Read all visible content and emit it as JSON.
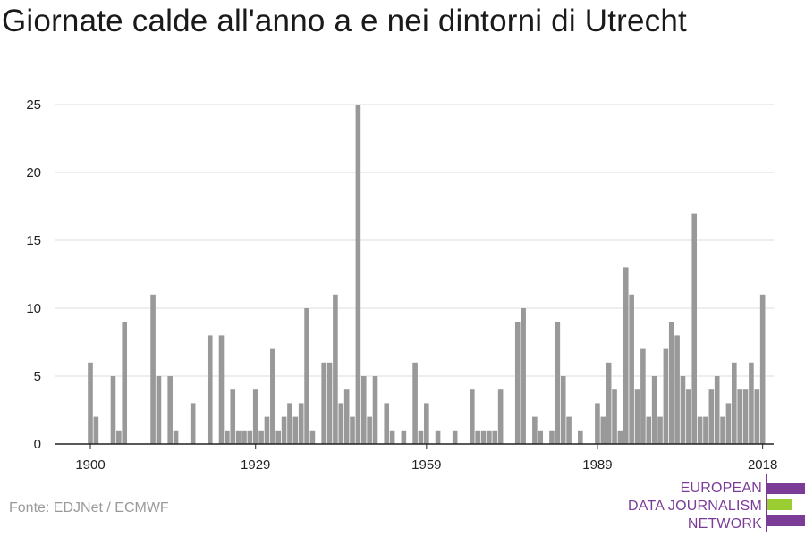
{
  "title": "Giornate calde all'anno a e nei dintorni di Utrecht",
  "source": "Fonte: EDJNet / ECMWF",
  "logo": {
    "lines": [
      "EUROPEAN",
      "DATA JOURNALISM",
      "NETWORK"
    ],
    "colors": {
      "text": "#7b3c98",
      "purple": "#7b3c98",
      "green": "#9acd32"
    }
  },
  "colors": {
    "bar": "#999999",
    "grid": "#dddddd",
    "axis": "#222222"
  },
  "chart_data": {
    "type": "bar",
    "title": "Giornate calde all'anno a e nei dintorni di Utrecht",
    "xlabel": "",
    "ylabel": "",
    "ylim": [
      0,
      25
    ],
    "yticks": [
      0,
      5,
      10,
      15,
      20,
      25
    ],
    "xticks": [
      1900,
      1929,
      1959,
      1989,
      2018
    ],
    "grid": true,
    "x": [
      1900,
      1901,
      1902,
      1903,
      1904,
      1905,
      1906,
      1907,
      1908,
      1909,
      1910,
      1911,
      1912,
      1913,
      1914,
      1915,
      1916,
      1917,
      1918,
      1919,
      1920,
      1921,
      1922,
      1923,
      1924,
      1925,
      1926,
      1927,
      1928,
      1929,
      1930,
      1931,
      1932,
      1933,
      1934,
      1935,
      1936,
      1937,
      1938,
      1939,
      1940,
      1941,
      1942,
      1943,
      1944,
      1945,
      1946,
      1947,
      1948,
      1949,
      1950,
      1951,
      1952,
      1953,
      1954,
      1955,
      1956,
      1957,
      1958,
      1959,
      1960,
      1961,
      1962,
      1963,
      1964,
      1965,
      1966,
      1967,
      1968,
      1969,
      1970,
      1971,
      1972,
      1973,
      1974,
      1975,
      1976,
      1977,
      1978,
      1979,
      1980,
      1981,
      1982,
      1983,
      1984,
      1985,
      1986,
      1987,
      1988,
      1989,
      1990,
      1991,
      1992,
      1993,
      1994,
      1995,
      1996,
      1997,
      1998,
      1999,
      2000,
      2001,
      2002,
      2003,
      2004,
      2005,
      2006,
      2007,
      2008,
      2009,
      2010,
      2011,
      2012,
      2013,
      2014,
      2015,
      2016,
      2017,
      2018
    ],
    "values": [
      6,
      2,
      0,
      0,
      5,
      1,
      9,
      0,
      0,
      0,
      0,
      11,
      5,
      0,
      5,
      1,
      0,
      0,
      3,
      0,
      0,
      8,
      0,
      8,
      1,
      4,
      1,
      1,
      1,
      4,
      1,
      2,
      7,
      1,
      2,
      3,
      2,
      3,
      10,
      1,
      0,
      6,
      6,
      11,
      3,
      4,
      2,
      25,
      5,
      2,
      5,
      0,
      3,
      1,
      0,
      1,
      0,
      6,
      1,
      3,
      0,
      1,
      0,
      0,
      1,
      0,
      0,
      4,
      1,
      1,
      1,
      1,
      4,
      0,
      0,
      9,
      10,
      0,
      2,
      1,
      0,
      1,
      9,
      5,
      2,
      0,
      1,
      0,
      0,
      3,
      2,
      6,
      4,
      1,
      13,
      11,
      4,
      7,
      2,
      5,
      2,
      7,
      9,
      8,
      5,
      4,
      17,
      2,
      2,
      4,
      5,
      2,
      3,
      6,
      4,
      4,
      6,
      4,
      11
    ]
  }
}
